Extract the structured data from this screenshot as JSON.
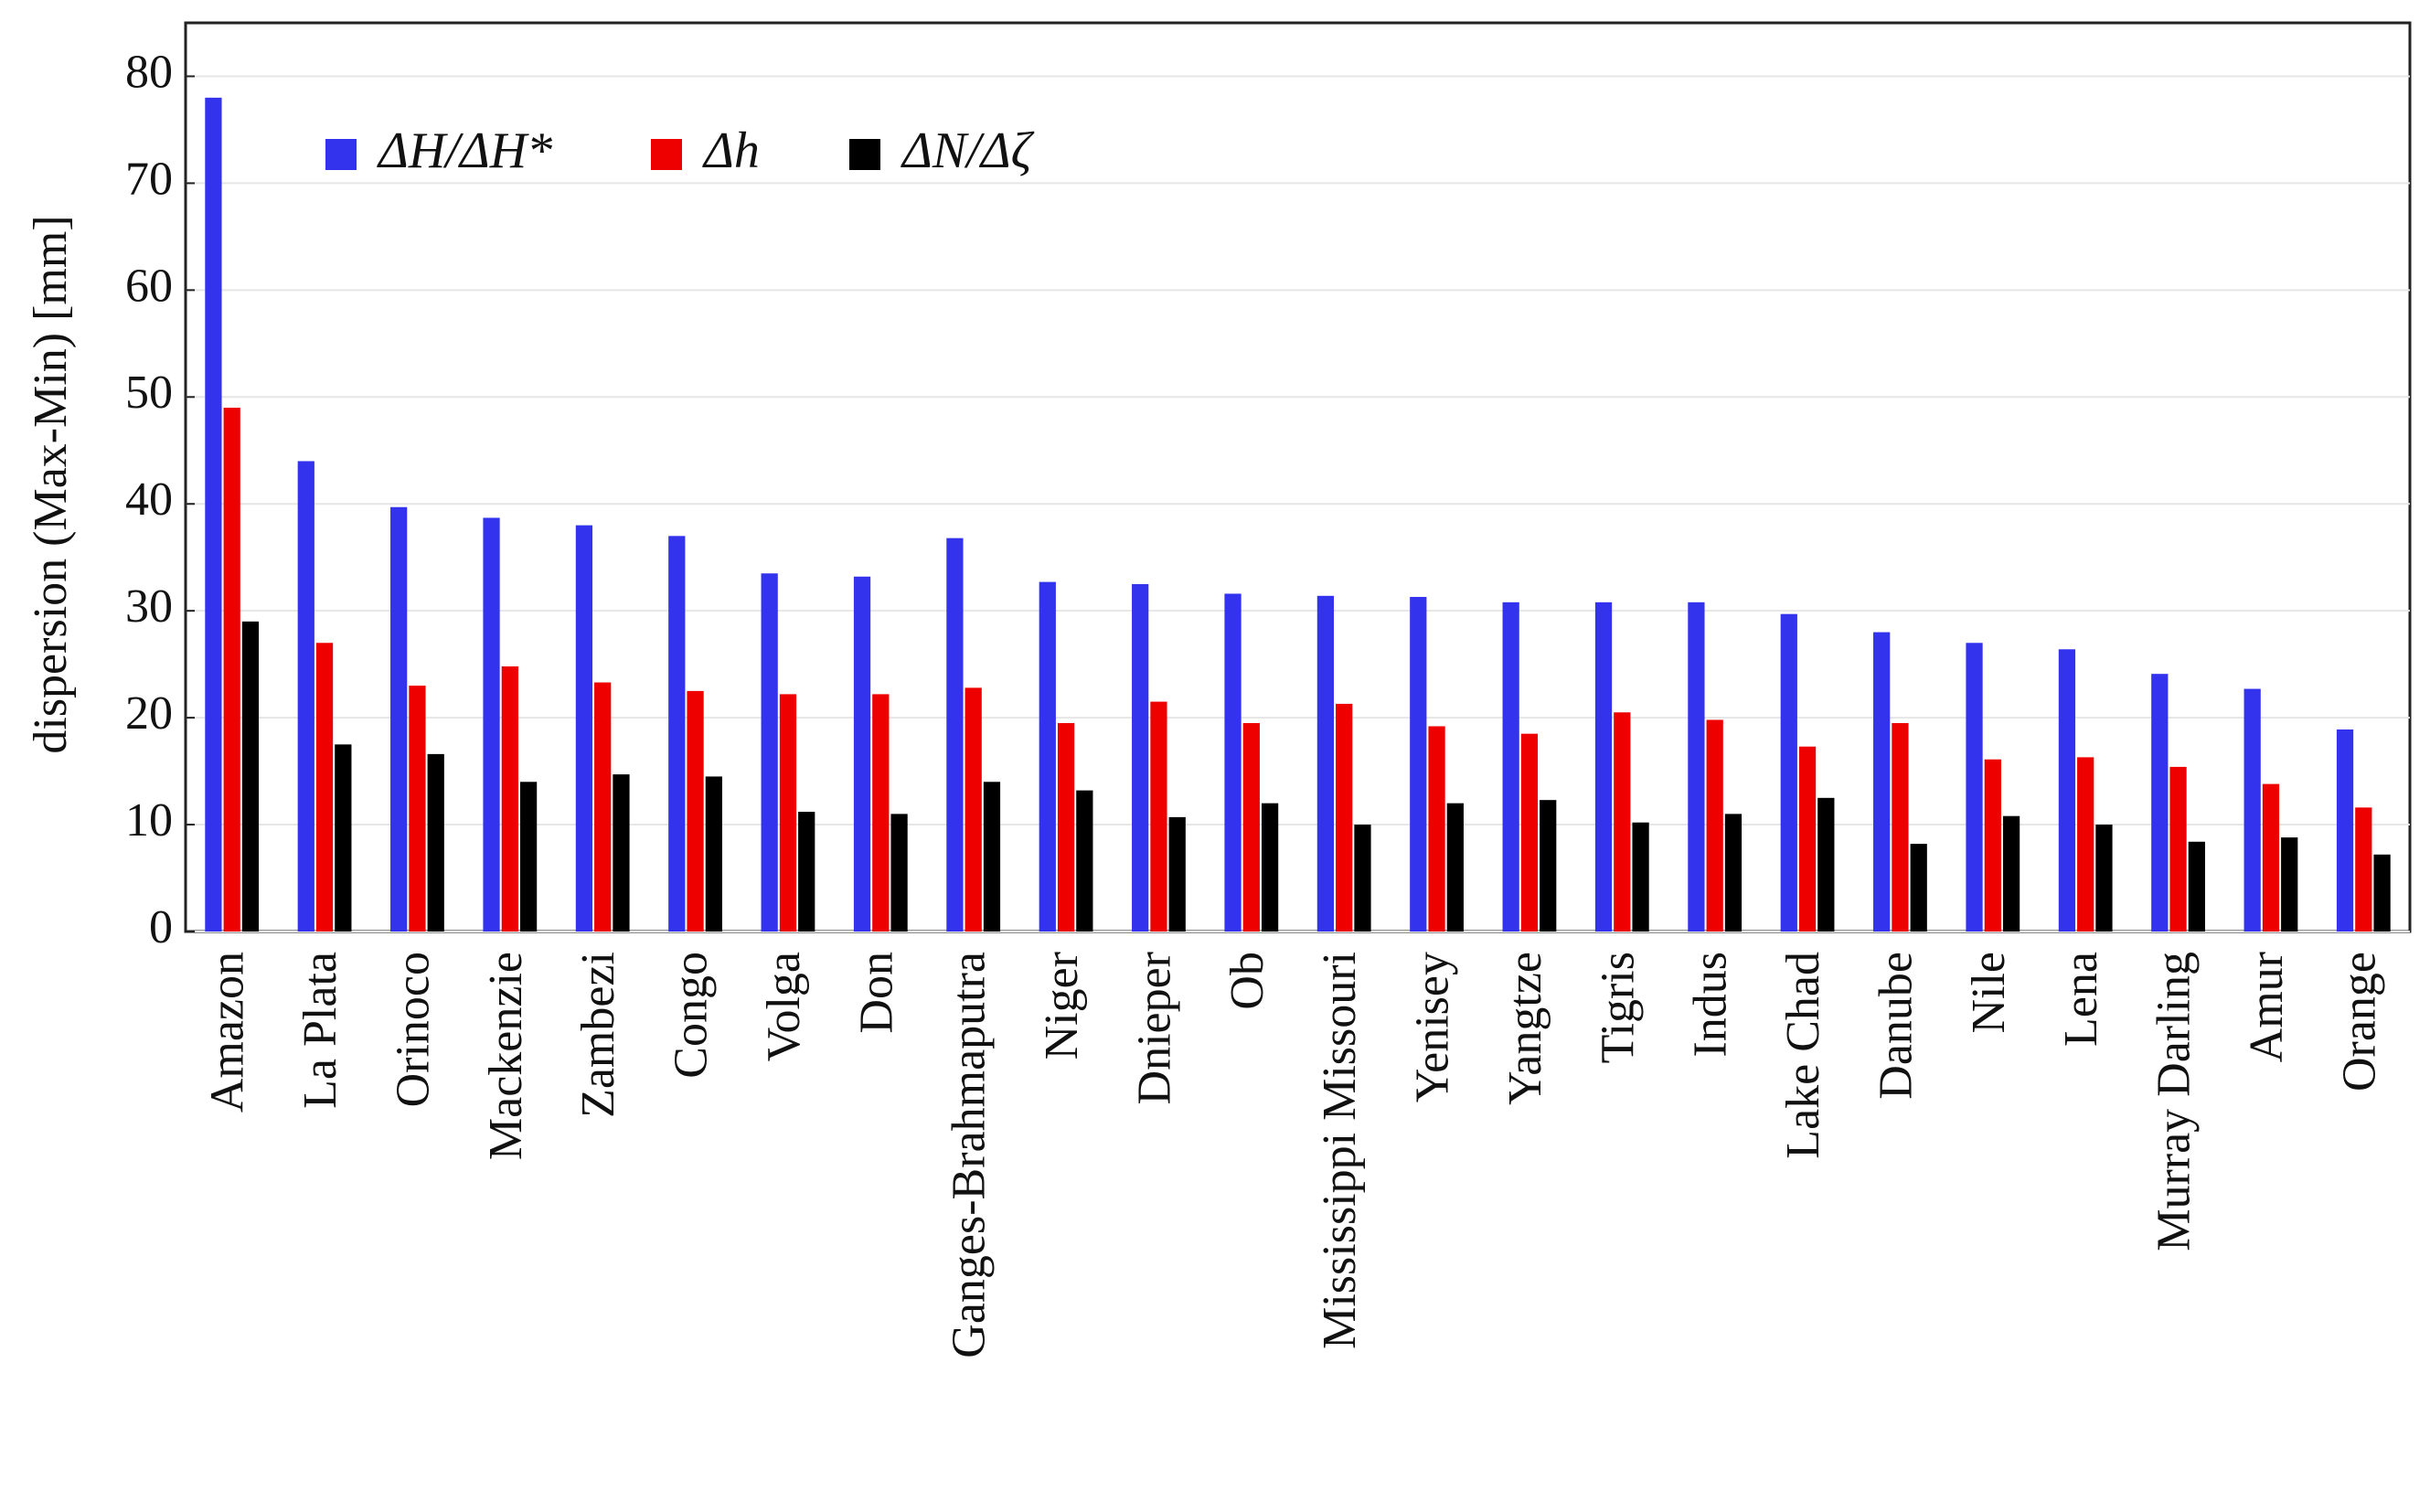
{
  "chart_data": {
    "type": "bar",
    "y_label": "dispersion (Max-Min) [mm]",
    "categories": [
      "Amazon",
      "La Plata",
      "Orinoco",
      "Mackenzie",
      "Zambezi",
      "Congo",
      "Volga",
      "Don",
      "Ganges-Brahmaputra",
      "Niger",
      "Dnieper",
      "Ob",
      "Mississippi Missouri",
      "Yenisey",
      "Yangtze",
      "Tigris",
      "Indus",
      "Lake Chad",
      "Danube",
      "Nile",
      "Lena",
      "Murray Darling",
      "Amur",
      "Orange"
    ],
    "series": [
      {
        "name": "ΔH/ΔH*",
        "color": "#3333ee",
        "values": [
          78,
          44,
          39.7,
          38.7,
          38,
          37,
          33.5,
          33.2,
          36.8,
          32.7,
          32.5,
          31.6,
          31.4,
          31.3,
          30.8,
          30.8,
          30.8,
          29.7,
          28,
          27,
          26.4,
          24.1,
          22.7,
          18.9
        ]
      },
      {
        "name": "Δh",
        "color": "#ee0000",
        "values": [
          49,
          27,
          23,
          24.8,
          23.3,
          22.5,
          22.2,
          22.2,
          22.8,
          19.5,
          21.5,
          19.5,
          21.3,
          19.2,
          18.5,
          20.5,
          19.8,
          17.3,
          19.5,
          16.1,
          16.3,
          15.4,
          13.8,
          11.6
        ]
      },
      {
        "name": "ΔN/Δζ",
        "color": "#000000",
        "values": [
          29,
          17.5,
          16.6,
          14,
          14.7,
          14.5,
          11.2,
          11,
          14,
          13.2,
          10.7,
          12,
          10,
          12,
          12.3,
          10.2,
          11,
          12.5,
          8.2,
          10.8,
          10,
          8.4,
          8.8,
          7.2
        ]
      }
    ],
    "ylim": [
      0,
      85
    ],
    "yticks": [
      0,
      10,
      20,
      30,
      40,
      50,
      60,
      70,
      80
    ],
    "grid": true,
    "legend": "top-left"
  }
}
